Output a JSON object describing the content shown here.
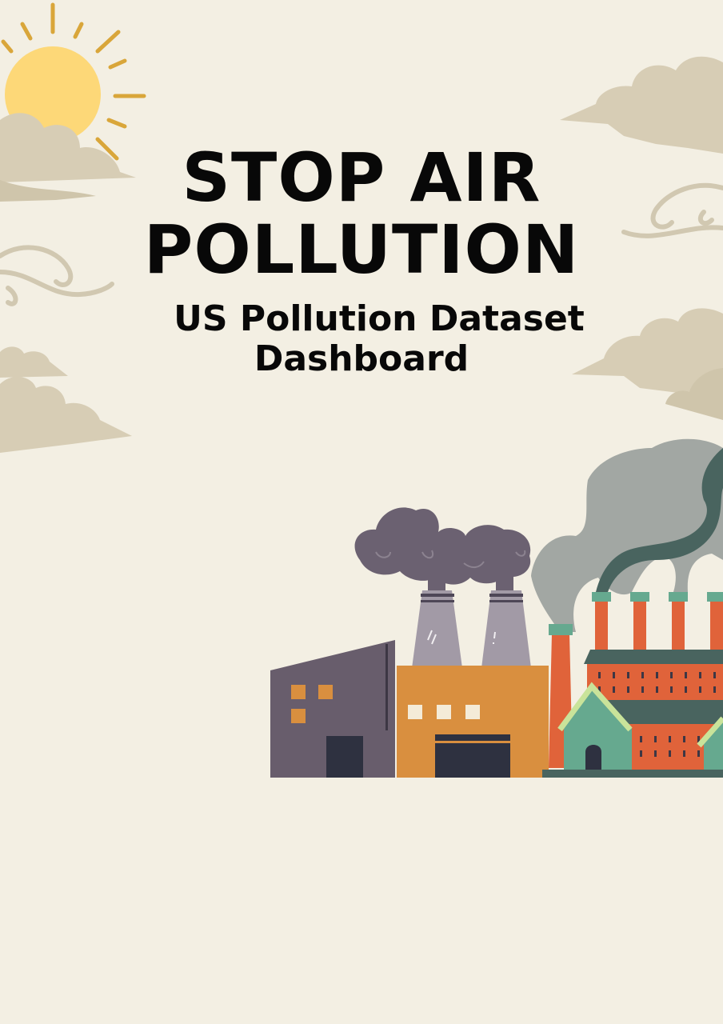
{
  "poster": {
    "title_line_1": "STOP AIR",
    "title_line_2": "POLLUTION",
    "subtitle_line_1": "US Pollution Dataset",
    "subtitle_line_2": "Dashboard"
  },
  "illustration": {
    "icons": [
      "sun-icon",
      "cloud-icon",
      "wind-swirl-icon",
      "smoke-cloud-icon",
      "factory-icon",
      "house-icon"
    ],
    "colors": {
      "background": "#f3efe3",
      "sun": "#fdd878",
      "sun_rays": "#d9a63a",
      "cloud": "#d7cdb5",
      "dark_smoke": "#6b6171",
      "grey_smoke": "#a2a7a3",
      "teal_smoke": "#49645f",
      "purple_building": "#685d6c",
      "orange_building": "#d98f3f",
      "red_building": "#e0633a",
      "green_roof": "#66a98f",
      "door": "#2e3140"
    }
  }
}
